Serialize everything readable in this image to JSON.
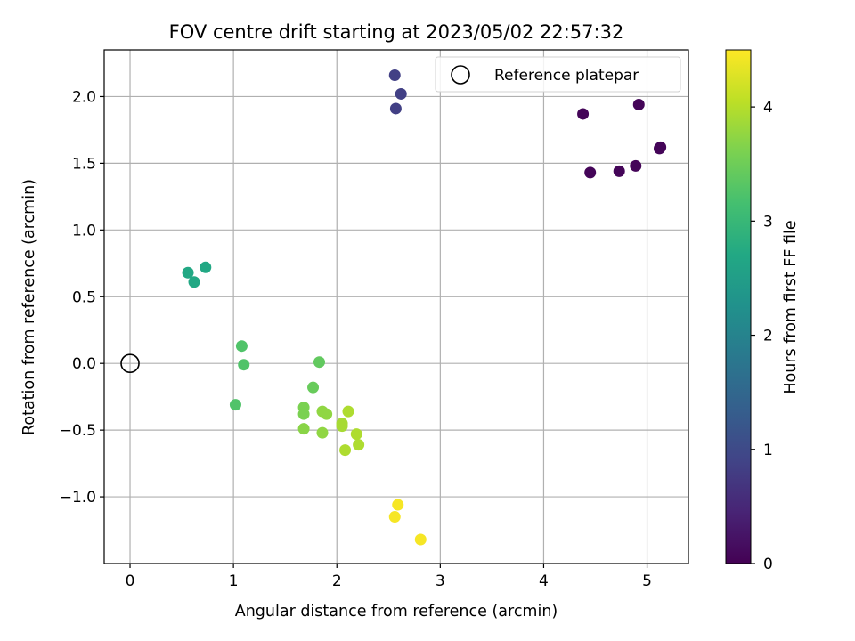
{
  "chart_data": {
    "type": "scatter",
    "title": "FOV centre drift starting at 2023/05/02 22:57:32",
    "xlabel": "Angular distance from reference (arcmin)",
    "ylabel": "Rotation from reference (arcmin)",
    "xlim": [
      -0.25,
      5.4
    ],
    "ylim": [
      -1.5,
      2.35
    ],
    "xticks": [
      "0",
      "1",
      "2",
      "3",
      "4",
      "5"
    ],
    "yticks": [
      "−1.0",
      "−0.5",
      "0.0",
      "0.5",
      "1.0",
      "1.5",
      "2.0"
    ],
    "grid": true,
    "legend": {
      "location": "upper-right",
      "entries": [
        "Reference platepar"
      ]
    },
    "reference_point": {
      "x": 0.0,
      "y": 0.0
    },
    "colorbar": {
      "label": "Hours from first FF file",
      "colormap": "viridis",
      "range": [
        0,
        4.5
      ],
      "ticks": [
        "0",
        "1",
        "2",
        "3",
        "4"
      ]
    },
    "points": [
      {
        "x": 4.38,
        "y": 1.87,
        "t": 0.05
      },
      {
        "x": 4.92,
        "y": 1.94,
        "t": 0.05
      },
      {
        "x": 5.13,
        "y": 1.62,
        "t": 0.05
      },
      {
        "x": 5.12,
        "y": 1.61,
        "t": 0.05
      },
      {
        "x": 4.45,
        "y": 1.43,
        "t": 0.05
      },
      {
        "x": 4.73,
        "y": 1.44,
        "t": 0.05
      },
      {
        "x": 4.89,
        "y": 1.48,
        "t": 0.05
      },
      {
        "x": 2.56,
        "y": 2.16,
        "t": 0.85
      },
      {
        "x": 2.62,
        "y": 2.02,
        "t": 0.85
      },
      {
        "x": 2.57,
        "y": 1.91,
        "t": 0.85
      },
      {
        "x": 0.56,
        "y": 0.68,
        "t": 2.7
      },
      {
        "x": 0.73,
        "y": 0.72,
        "t": 2.7
      },
      {
        "x": 0.62,
        "y": 0.61,
        "t": 2.7
      },
      {
        "x": 1.08,
        "y": 0.13,
        "t": 3.25
      },
      {
        "x": 1.1,
        "y": -0.01,
        "t": 3.25
      },
      {
        "x": 1.02,
        "y": -0.31,
        "t": 3.25
      },
      {
        "x": 1.83,
        "y": 0.01,
        "t": 3.4
      },
      {
        "x": 1.77,
        "y": -0.18,
        "t": 3.45
      },
      {
        "x": 1.68,
        "y": -0.33,
        "t": 3.6
      },
      {
        "x": 1.68,
        "y": -0.38,
        "t": 3.6
      },
      {
        "x": 1.68,
        "y": -0.49,
        "t": 3.7
      },
      {
        "x": 1.86,
        "y": -0.36,
        "t": 3.75
      },
      {
        "x": 1.9,
        "y": -0.38,
        "t": 3.75
      },
      {
        "x": 1.86,
        "y": -0.52,
        "t": 3.75
      },
      {
        "x": 2.05,
        "y": -0.45,
        "t": 3.9
      },
      {
        "x": 2.05,
        "y": -0.47,
        "t": 3.9
      },
      {
        "x": 2.11,
        "y": -0.36,
        "t": 3.95
      },
      {
        "x": 2.19,
        "y": -0.53,
        "t": 3.95
      },
      {
        "x": 2.21,
        "y": -0.61,
        "t": 3.95
      },
      {
        "x": 2.08,
        "y": -0.65,
        "t": 3.95
      },
      {
        "x": 2.59,
        "y": -1.06,
        "t": 4.45
      },
      {
        "x": 2.56,
        "y": -1.15,
        "t": 4.45
      },
      {
        "x": 2.81,
        "y": -1.32,
        "t": 4.45
      }
    ]
  }
}
